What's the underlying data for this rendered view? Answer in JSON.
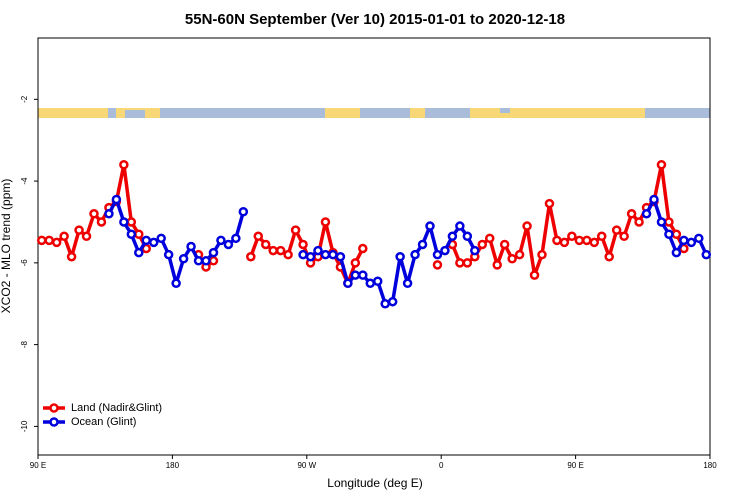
{
  "chart_data": {
    "type": "line",
    "title": "55N-60N September (Ver 10)   2015-01-01 to 2020-12-18",
    "x_label": "Longitude (deg E)",
    "y_label": "XCO2 - MLO trend (ppm)",
    "x": [
      92.5,
      97.5,
      102.5,
      107.5,
      112.5,
      117.5,
      122.5,
      127.5,
      132.5,
      137.5,
      142.5,
      147.5,
      152.5,
      157.5,
      162.5,
      167.5,
      172.5,
      177.5,
      182.5,
      187.5,
      192.5,
      197.5,
      202.5,
      207.5,
      212.5,
      217.5,
      222.5,
      227.5,
      232.5,
      237.5,
      242.5,
      247.5,
      252.5,
      257.5,
      262.5,
      267.5,
      272.5,
      277.5,
      282.5,
      287.5,
      292.5,
      297.5,
      302.5,
      307.5,
      312.5,
      317.5,
      322.5,
      327.5,
      332.5,
      337.5,
      342.5,
      347.5,
      352.5,
      357.5,
      362.5,
      367.5,
      372.5,
      377.5,
      382.5,
      387.5,
      392.5,
      397.5,
      402.5,
      407.5,
      412.5,
      417.5,
      422.5,
      427.5,
      432.5,
      437.5,
      442.5,
      447.5,
      452.5,
      457.5,
      462.5,
      467.5,
      472.5,
      477.5,
      482.5,
      487.5,
      492.5,
      497.5,
      502.5,
      507.5,
      512.5,
      517.5,
      522.5,
      527.5,
      532.5,
      537.5
    ],
    "series": [
      {
        "name": "Land (Nadir&Glint)",
        "color": "#ee0000",
        "values": [
          -5.45,
          -5.45,
          -5.5,
          -5.35,
          -5.85,
          -5.2,
          -5.35,
          -4.8,
          -5.0,
          -4.65,
          -4.5,
          -3.6,
          -5.0,
          -5.3,
          -5.65,
          null,
          null,
          null,
          null,
          null,
          null,
          -5.8,
          -6.1,
          -5.95,
          null,
          null,
          null,
          null,
          -5.85,
          -5.35,
          -5.55,
          -5.7,
          -5.7,
          -5.8,
          -5.2,
          -5.55,
          -6.0,
          -5.85,
          -5.0,
          -5.75,
          -6.1,
          -6.5,
          -6.0,
          -5.65,
          null,
          null,
          null,
          null,
          null,
          null,
          null,
          null,
          null,
          -6.05,
          null,
          -5.55,
          -6.0,
          -6.0,
          -5.85,
          -5.55,
          -5.4,
          -6.05,
          -5.55,
          -5.9,
          -5.8,
          -5.1,
          -6.3,
          -5.8,
          -4.55,
          -5.45,
          -5.5,
          -5.35,
          -5.45,
          -5.45,
          -5.5,
          -5.35,
          -5.85,
          -5.2,
          -5.35,
          -4.8,
          -5.0,
          -4.65,
          -4.5,
          -3.6,
          -5.0,
          -5.3,
          -5.65,
          null,
          null,
          null
        ]
      },
      {
        "name": "Ocean (Glint)",
        "color": "#0000dd",
        "values": [
          null,
          null,
          null,
          null,
          null,
          null,
          null,
          null,
          null,
          -4.8,
          -4.45,
          -5.0,
          -5.3,
          -5.75,
          -5.45,
          -5.5,
          -5.4,
          -5.8,
          -6.5,
          -5.9,
          -5.6,
          -5.95,
          -5.95,
          -5.75,
          -5.45,
          -5.55,
          -5.4,
          -4.75,
          null,
          null,
          null,
          null,
          null,
          null,
          null,
          -5.8,
          -5.85,
          -5.7,
          -5.8,
          -5.8,
          -5.85,
          -6.5,
          -6.3,
          -6.3,
          -6.5,
          -6.45,
          -7.0,
          -6.95,
          -5.85,
          -6.5,
          -5.8,
          -5.55,
          -5.1,
          -5.8,
          -5.7,
          -5.35,
          -5.1,
          -5.35,
          -5.7,
          null,
          null,
          null,
          null,
          null,
          null,
          null,
          null,
          null,
          null,
          null,
          null,
          null,
          null,
          null,
          null,
          null,
          null,
          null,
          null,
          null,
          null,
          -4.8,
          -4.45,
          -5.0,
          -5.3,
          -5.75,
          -5.45,
          -5.5,
          -5.4,
          -5.8
        ]
      }
    ],
    "xlim": [
      90,
      540
    ],
    "xticks": [
      {
        "value": 90,
        "label": "90 E"
      },
      180,
      {
        "value": 270,
        "label": "90 W"
      },
      {
        "value": 360,
        "label": "0"
      },
      {
        "value": 450,
        "label": "90 E"
      },
      {
        "value": 540,
        "label": "180"
      }
    ],
    "ylim": [
      -10.7,
      -0.5
    ],
    "yticks": [
      -10,
      -8,
      -6,
      -4,
      -2
    ],
    "legend": "bottomleft",
    "grid": false
  }
}
